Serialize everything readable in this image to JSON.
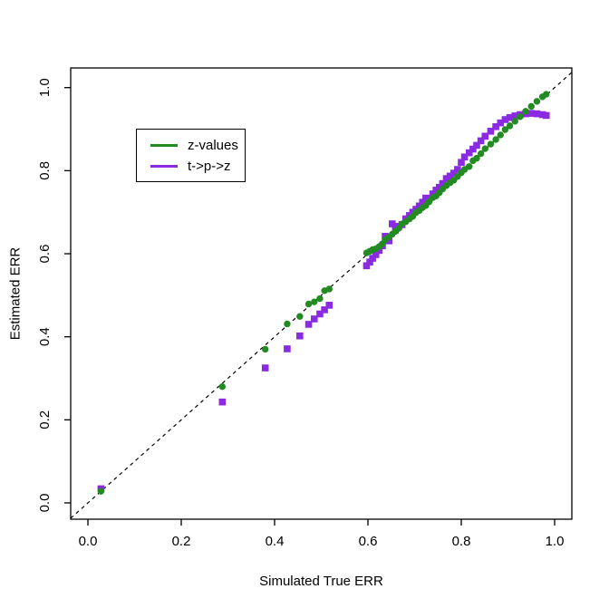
{
  "figure": {
    "xlabel": "Simulated True ERR",
    "ylabel": "Estimated ERR",
    "x_ticks": [
      "0.0",
      "0.2",
      "0.4",
      "0.6",
      "0.8",
      "1.0"
    ],
    "y_ticks": [
      "0.0",
      "0.2",
      "0.4",
      "0.6",
      "0.8",
      "1.0"
    ]
  },
  "legend": {
    "items": [
      {
        "label": "z-values",
        "color": "#228B22",
        "swatch": "line-swatch"
      },
      {
        "label": "t->p->z",
        "color": "#8A2BE2",
        "swatch": "line-swatch"
      }
    ]
  },
  "colors": {
    "series_green": "#228B22",
    "series_purple": "#8A2BE2",
    "axis": "#000000",
    "background": "#ffffff",
    "reference_line": "#000000"
  },
  "chart_data": {
    "type": "scatter",
    "title": "",
    "xlabel": "Simulated True ERR",
    "ylabel": "Estimated ERR",
    "xlim": [
      0,
      1
    ],
    "ylim": [
      0,
      1
    ],
    "x_tick_values": [
      0,
      0.2,
      0.4,
      0.6,
      0.8,
      1.0
    ],
    "y_tick_values": [
      0,
      0.2,
      0.4,
      0.6,
      0.8,
      1.0
    ],
    "grid": false,
    "legend_position": "upper-left-inset",
    "reference_line": {
      "type": "identity y=x",
      "style": "dashed",
      "color": "#000000"
    },
    "x": [
      0.028,
      0.288,
      0.38,
      0.427,
      0.454,
      0.473,
      0.485,
      0.497,
      0.507,
      0.517,
      0.597,
      0.604,
      0.61,
      0.617,
      0.624,
      0.631,
      0.637,
      0.645,
      0.652,
      0.659,
      0.666,
      0.673,
      0.681,
      0.689,
      0.696,
      0.703,
      0.71,
      0.717,
      0.724,
      0.731,
      0.739,
      0.746,
      0.753,
      0.76,
      0.768,
      0.776,
      0.784,
      0.792,
      0.8,
      0.807,
      0.817,
      0.825,
      0.833,
      0.842,
      0.851,
      0.863,
      0.874,
      0.884,
      0.894,
      0.904,
      0.915,
      0.926,
      0.938,
      0.95,
      0.962,
      0.974,
      0.982
    ],
    "series": [
      {
        "name": "z-values",
        "marker": "circle",
        "color": "#228B22",
        "values": [
          0.028,
          0.28,
          0.37,
          0.431,
          0.449,
          0.479,
          0.484,
          0.492,
          0.511,
          0.515,
          0.602,
          0.606,
          0.61,
          0.612,
          0.617,
          0.624,
          0.634,
          0.64,
          0.647,
          0.654,
          0.661,
          0.672,
          0.677,
          0.684,
          0.69,
          0.699,
          0.704,
          0.711,
          0.716,
          0.725,
          0.735,
          0.739,
          0.747,
          0.756,
          0.764,
          0.771,
          0.777,
          0.786,
          0.795,
          0.803,
          0.81,
          0.824,
          0.83,
          0.841,
          0.853,
          0.864,
          0.875,
          0.886,
          0.899,
          0.908,
          0.919,
          0.93,
          0.943,
          0.955,
          0.967,
          0.978,
          0.984
        ]
      },
      {
        "name": "t->p->z",
        "marker": "square",
        "color": "#8A2BE2",
        "values": [
          0.034,
          0.243,
          0.325,
          0.371,
          0.402,
          0.43,
          0.443,
          0.455,
          0.465,
          0.476,
          0.571,
          0.58,
          0.589,
          0.598,
          0.608,
          0.619,
          0.642,
          0.631,
          0.672,
          0.657,
          0.666,
          0.67,
          0.684,
          0.692,
          0.7,
          0.707,
          0.715,
          0.724,
          0.734,
          0.733,
          0.744,
          0.753,
          0.76,
          0.769,
          0.781,
          0.787,
          0.794,
          0.803,
          0.82,
          0.833,
          0.843,
          0.852,
          0.861,
          0.872,
          0.883,
          0.895,
          0.906,
          0.915,
          0.923,
          0.928,
          0.932,
          0.935,
          0.937,
          0.938,
          0.937,
          0.935,
          0.933
        ]
      }
    ]
  }
}
